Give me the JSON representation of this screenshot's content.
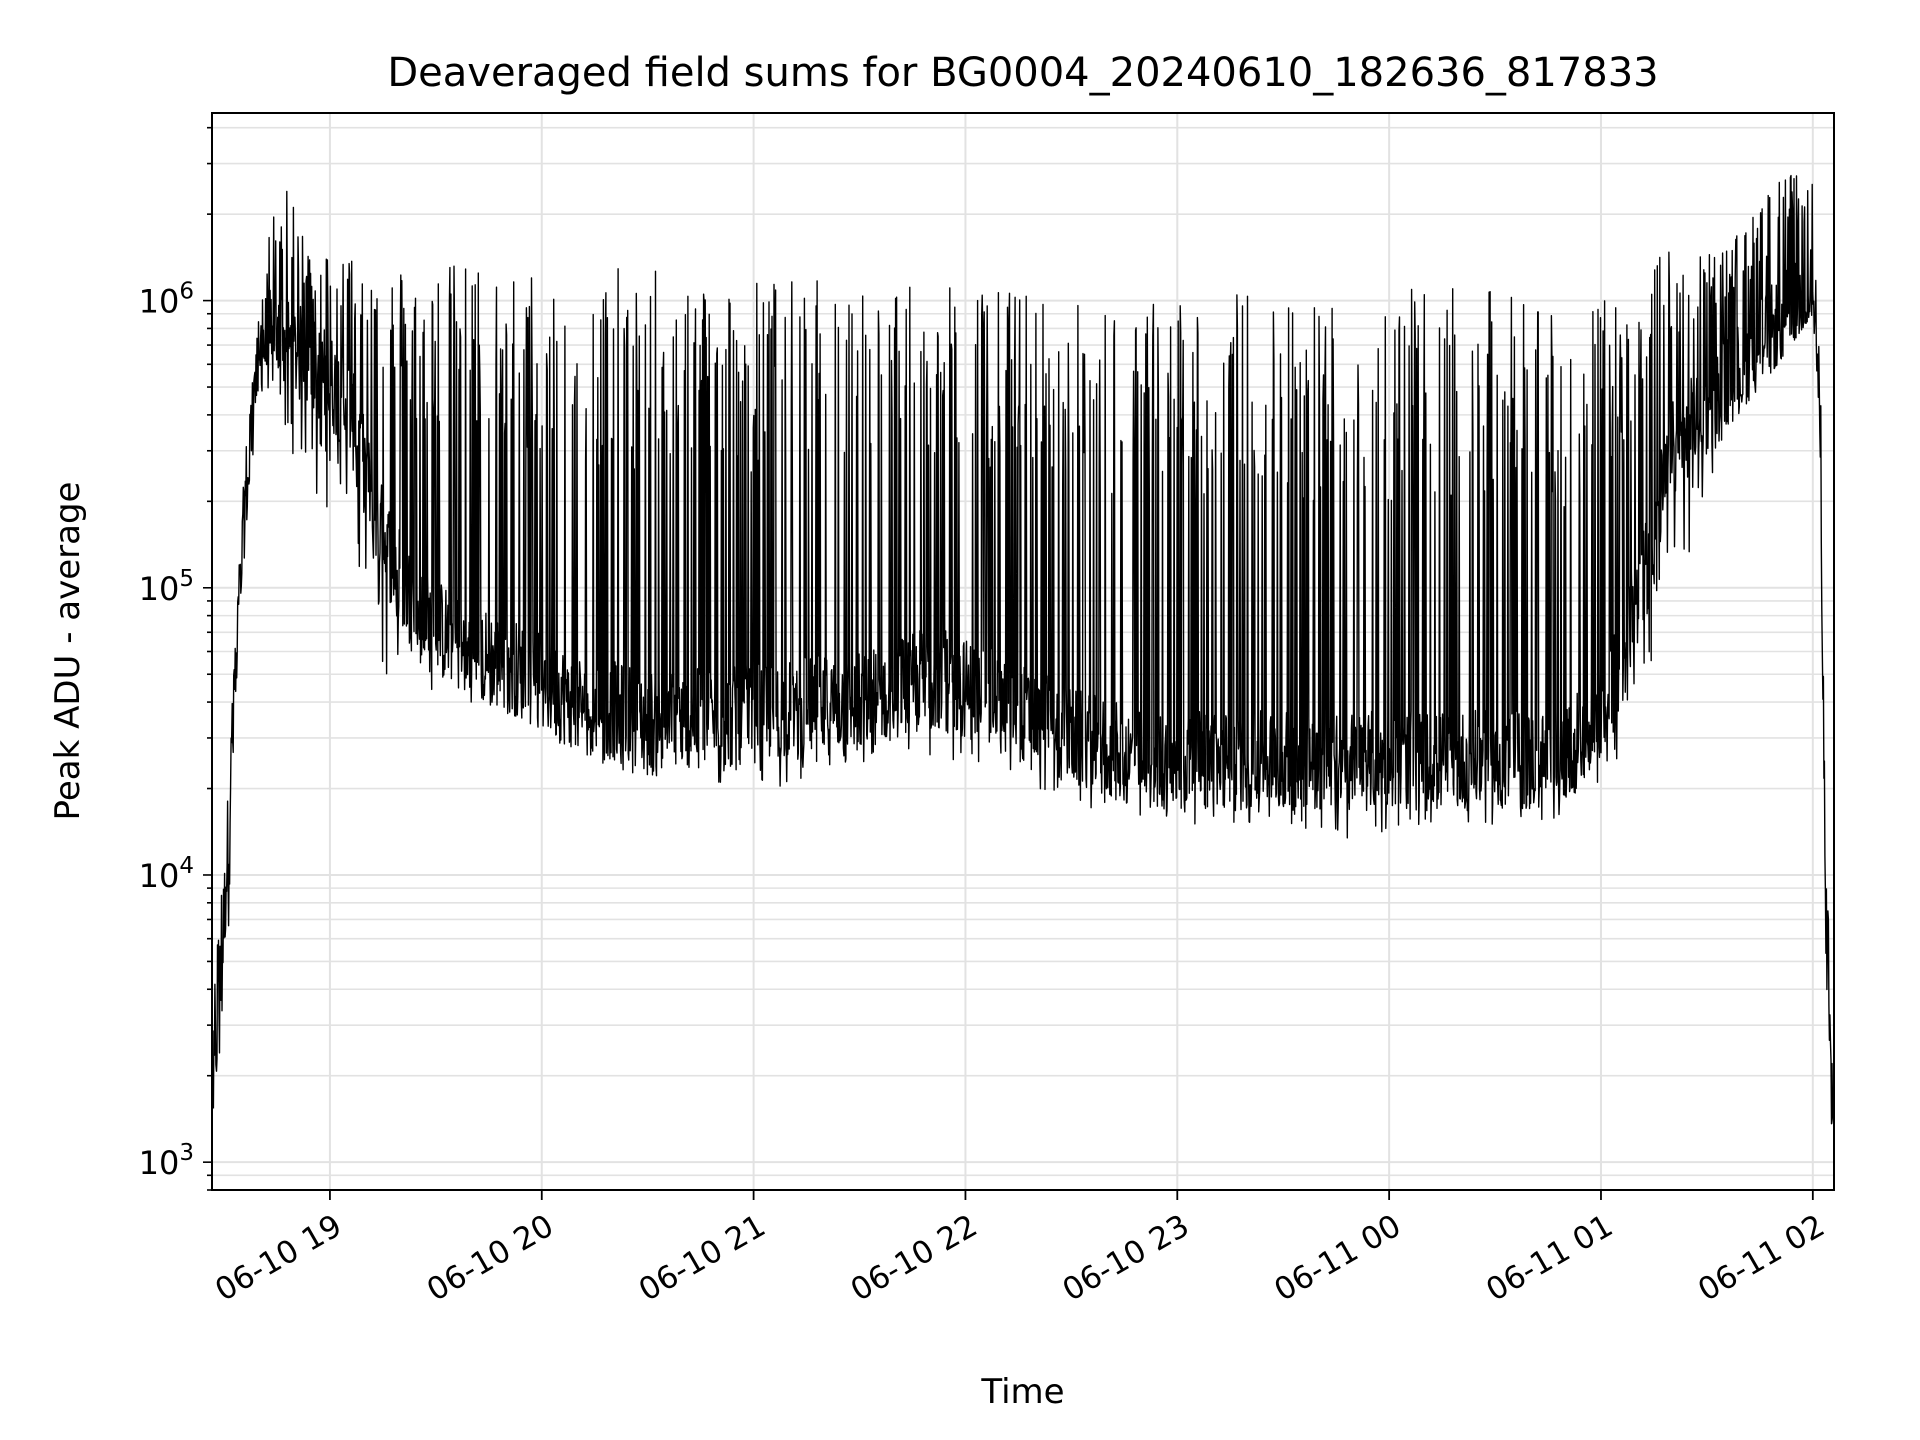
{
  "chart_data": {
    "type": "line",
    "title": "Deaveraged field sums for BG0004_20240610_182636_817833",
    "xlabel": "Time",
    "ylabel": "Peak ADU - average",
    "yscale": "log",
    "ylim": [
      800,
      4500000
    ],
    "xlim": [
      "2024-06-10 18:26:36",
      "2024-06-11 02:06:00"
    ],
    "grid": true,
    "x_ticks": [
      {
        "label": "06-10 19",
        "time": "2024-06-10 19:00"
      },
      {
        "label": "06-10 20",
        "time": "2024-06-10 20:00"
      },
      {
        "label": "06-10 21",
        "time": "2024-06-10 21:00"
      },
      {
        "label": "06-10 22",
        "time": "2024-06-10 22:00"
      },
      {
        "label": "06-10 23",
        "time": "2024-06-10 23:00"
      },
      {
        "label": "06-11 00",
        "time": "2024-06-11 00:00"
      },
      {
        "label": "06-11 01",
        "time": "2024-06-11 01:00"
      },
      {
        "label": "06-11 02",
        "time": "2024-06-11 02:00"
      }
    ],
    "y_ticks": [
      {
        "base": "10",
        "exp": "3",
        "value": 1000
      },
      {
        "base": "10",
        "exp": "4",
        "value": 10000
      },
      {
        "base": "10",
        "exp": "5",
        "value": 100000
      },
      {
        "base": "10",
        "exp": "6",
        "value": 1000000
      }
    ],
    "series": [
      {
        "color": "#000000",
        "envelope": [
          {
            "time": "2024-06-10 18:27",
            "baseline": 1800,
            "low": 1300,
            "high": 3500
          },
          {
            "time": "2024-06-10 18:30",
            "baseline": 7000,
            "low": 2300,
            "high": 15000
          },
          {
            "time": "2024-06-10 18:33",
            "baseline": 40000,
            "low": 20000,
            "high": 60000
          },
          {
            "time": "2024-06-10 18:36",
            "baseline": 200000,
            "low": 150000,
            "high": 300000
          },
          {
            "time": "2024-06-10 18:40",
            "baseline": 700000,
            "low": 500000,
            "high": 900000
          },
          {
            "time": "2024-06-10 18:45",
            "baseline": 750000,
            "low": 400000,
            "high": 2900000
          },
          {
            "time": "2024-06-10 18:55",
            "baseline": 600000,
            "low": 200000,
            "high": 1500000
          },
          {
            "time": "2024-06-10 19:05",
            "baseline": 450000,
            "low": 150000,
            "high": 1500000
          },
          {
            "time": "2024-06-10 19:15",
            "baseline": 150000,
            "low": 50000,
            "high": 1400000
          },
          {
            "time": "2024-06-10 19:25",
            "baseline": 80000,
            "low": 40000,
            "high": 1300000
          },
          {
            "time": "2024-06-10 19:40",
            "baseline": 60000,
            "low": 40000,
            "high": 1400000
          },
          {
            "time": "2024-06-10 19:55",
            "baseline": 50000,
            "low": 35000,
            "high": 1300000
          },
          {
            "time": "2024-06-10 20:10",
            "baseline": 40000,
            "low": 25000,
            "high": 1300000
          },
          {
            "time": "2024-06-10 20:30",
            "baseline": 35000,
            "low": 22000,
            "high": 1300000
          },
          {
            "time": "2024-06-10 20:50",
            "baseline": 35000,
            "low": 20000,
            "high": 1250000
          },
          {
            "time": "2024-06-10 21:10",
            "baseline": 38000,
            "low": 20000,
            "high": 1200000
          },
          {
            "time": "2024-06-10 21:30",
            "baseline": 40000,
            "low": 22000,
            "high": 1200000
          },
          {
            "time": "2024-06-10 21:50",
            "baseline": 50000,
            "low": 25000,
            "high": 1100000
          },
          {
            "time": "2024-06-10 22:10",
            "baseline": 40000,
            "low": 22000,
            "high": 1150000
          },
          {
            "time": "2024-06-10 22:30",
            "baseline": 30000,
            "low": 18000,
            "high": 1000000
          },
          {
            "time": "2024-06-10 22:50",
            "baseline": 25000,
            "low": 15000,
            "high": 1000000
          },
          {
            "time": "2024-06-10 23:10",
            "baseline": 25000,
            "low": 15000,
            "high": 1100000
          },
          {
            "time": "2024-06-10 23:30",
            "baseline": 25000,
            "low": 15000,
            "high": 1100000
          },
          {
            "time": "2024-06-10 23:50",
            "baseline": 25000,
            "low": 13000,
            "high": 1100000
          },
          {
            "time": "2024-06-11 00:10",
            "baseline": 25000,
            "low": 15000,
            "high": 1100000
          },
          {
            "time": "2024-06-11 00:30",
            "baseline": 25000,
            "low": 15000,
            "high": 1100000
          },
          {
            "time": "2024-06-11 00:50",
            "baseline": 25000,
            "low": 15000,
            "high": 1000000
          },
          {
            "time": "2024-06-11 01:05",
            "baseline": 50000,
            "low": 25000,
            "high": 1000000
          },
          {
            "time": "2024-06-11 01:20",
            "baseline": 300000,
            "low": 80000,
            "high": 1600000
          },
          {
            "time": "2024-06-11 01:35",
            "baseline": 500000,
            "low": 350000,
            "high": 1500000
          },
          {
            "time": "2024-06-11 01:50",
            "baseline": 800000,
            "low": 600000,
            "high": 2600000
          },
          {
            "time": "2024-06-11 02:00",
            "baseline": 1100000,
            "low": 900000,
            "high": 3000000
          },
          {
            "time": "2024-06-11 02:02",
            "baseline": 500000,
            "low": 300000,
            "high": 800000
          },
          {
            "time": "2024-06-11 02:04",
            "baseline": 3000,
            "low": 1100,
            "high": 10000
          },
          {
            "time": "2024-06-11 02:06",
            "baseline": 1500,
            "low": 1200,
            "high": 2500
          }
        ]
      }
    ]
  }
}
